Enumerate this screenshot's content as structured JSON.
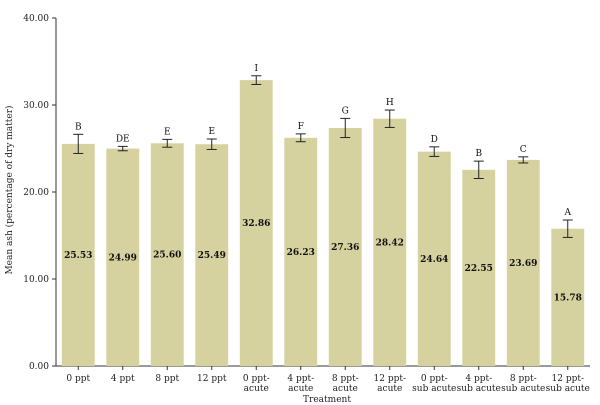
{
  "chart_data": {
    "type": "bar",
    "title": "",
    "xlabel": "Treatment",
    "ylabel": "Mean ash (percentage of dry matter)",
    "ylim": [
      0,
      40
    ],
    "yticks": [
      "0.00",
      "10.00",
      "20.00",
      "30.00",
      "40.00"
    ],
    "grid": false,
    "bar_color": "#d6d2a0",
    "categories": [
      [
        "0 ppt"
      ],
      [
        "4 ppt"
      ],
      [
        "8 ppt"
      ],
      [
        "12 ppt"
      ],
      [
        "0 ppt-",
        "acute"
      ],
      [
        "4 ppt-",
        "acute"
      ],
      [
        "8 ppt-",
        "acute"
      ],
      [
        "12 ppt-",
        "acute"
      ],
      [
        "0 ppt-",
        "sub acute"
      ],
      [
        "4 ppt-",
        "sub acute"
      ],
      [
        "8 ppt-",
        "sub acute"
      ],
      [
        "12 ppt-",
        "sub acute"
      ]
    ],
    "values": [
      25.53,
      24.99,
      25.6,
      25.49,
      32.86,
      26.23,
      27.36,
      28.42,
      24.64,
      22.55,
      23.69,
      15.78
    ],
    "value_labels": [
      "25.53",
      "24.99",
      "25.60",
      "25.49",
      "32.86",
      "26.23",
      "27.36",
      "28.42",
      "24.64",
      "22.55",
      "23.69",
      "15.78"
    ],
    "errors": [
      1.1,
      0.25,
      0.45,
      0.6,
      0.5,
      0.45,
      1.1,
      1.0,
      0.55,
      1.0,
      0.35,
      1.0
    ],
    "significance": [
      "B",
      "DE",
      "E",
      "E",
      "I",
      "F",
      "G",
      "H",
      "D",
      "B",
      "C",
      "A"
    ]
  }
}
